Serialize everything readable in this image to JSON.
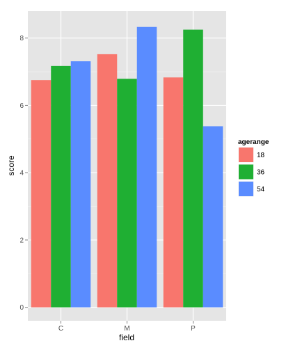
{
  "chart_data": {
    "type": "bar",
    "categories": [
      "C",
      "M",
      "P"
    ],
    "series": [
      {
        "name": "18",
        "values": [
          6.75,
          7.52,
          6.83
        ],
        "color": "#F8766D"
      },
      {
        "name": "36",
        "values": [
          7.17,
          6.79,
          8.25
        ],
        "color": "#1FAF33"
      },
      {
        "name": "54",
        "values": [
          7.31,
          8.33,
          5.38
        ],
        "color": "#5A8CFF"
      }
    ],
    "title": "",
    "xlabel": "field",
    "ylabel": "score",
    "ylim": [
      -0.4,
      8.8
    ],
    "yticks": [
      0,
      2,
      4,
      6,
      8
    ],
    "grid": true,
    "legend": {
      "title": "agerange",
      "position": "right"
    },
    "panel_color": "#E5E5E5",
    "grid_color": "#FFFFFF"
  }
}
